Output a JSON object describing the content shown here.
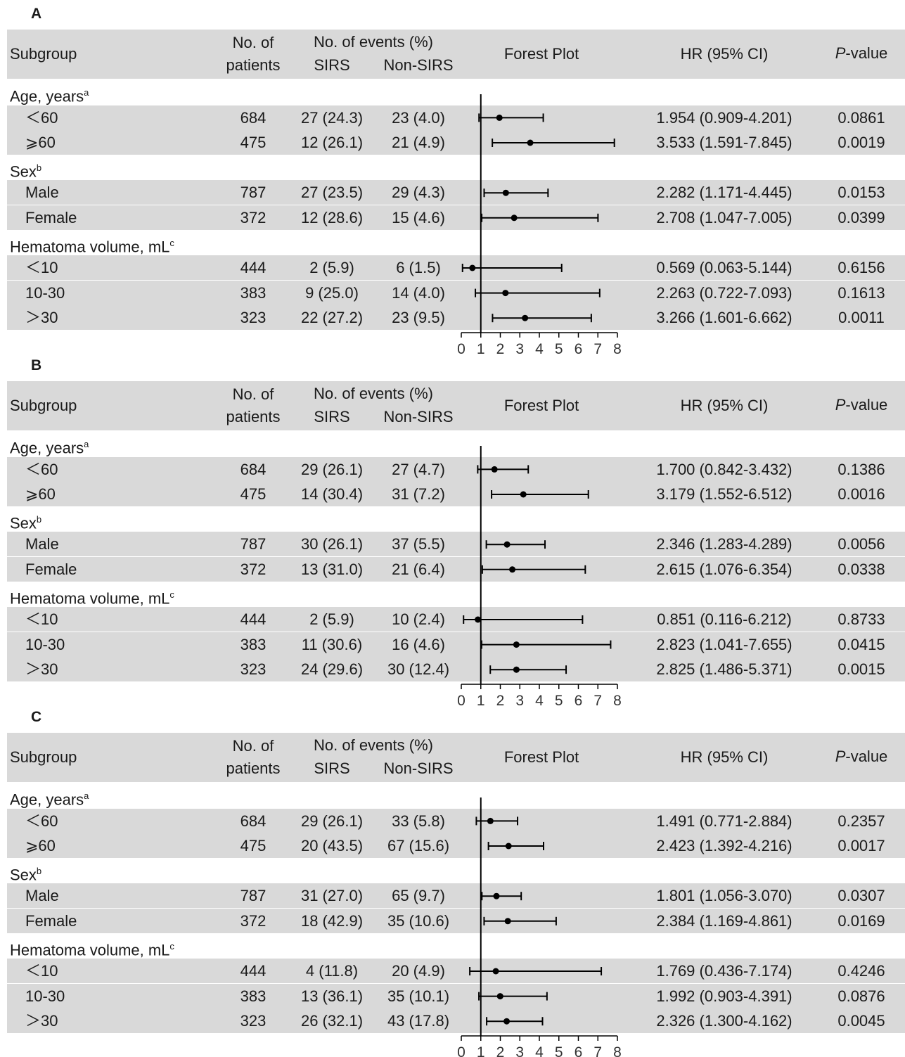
{
  "columns": {
    "subgroup": "Subgroup",
    "patients_line1": "No. of",
    "patients_line2": "patients",
    "events": "No. of events (%)",
    "sirs": "SIRS",
    "non_sirs": "Non-SIRS",
    "forest": "Forest Plot",
    "hr": "HR (95% CI)",
    "p_italic": "P",
    "p_rest": "-value"
  },
  "chart_data": [
    {
      "type": "forest",
      "panel": "A",
      "x_ticks": [
        0,
        1,
        2,
        3,
        4,
        5,
        6,
        7,
        8
      ],
      "xlim": [
        0,
        8
      ],
      "reference_line": 1,
      "rows": [
        {
          "kind": "group",
          "label": "Age, years",
          "sup": "a"
        },
        {
          "kind": "item",
          "label": "<60",
          "glyph": "＜60",
          "patients": "684",
          "sirs": "27 (24.3)",
          "non_sirs": "23 (4.0)",
          "hr_text": "1.954 (0.909-4.201)",
          "p": "0.0861",
          "hr": 1.954,
          "lo": 0.909,
          "hi": 4.201
        },
        {
          "kind": "item",
          "label": ">=60",
          "glyph": "⩾60",
          "patients": "475",
          "sirs": "12 (26.1)",
          "non_sirs": "21 (4.9)",
          "hr_text": "3.533 (1.591-7.845)",
          "p": "0.0019",
          "hr": 3.533,
          "lo": 1.591,
          "hi": 7.845
        },
        {
          "kind": "group",
          "label": "Sex",
          "sup": "b"
        },
        {
          "kind": "item",
          "label": "Male",
          "glyph": "Male",
          "patients": "787",
          "sirs": "27 (23.5)",
          "non_sirs": "29 (4.3)",
          "hr_text": "2.282 (1.171-4.445)",
          "p": "0.0153",
          "hr": 2.282,
          "lo": 1.171,
          "hi": 4.445
        },
        {
          "kind": "item",
          "label": "Female",
          "glyph": "Female",
          "patients": "372",
          "sirs": "12 (28.6)",
          "non_sirs": "15 (4.6)",
          "hr_text": "2.708 (1.047-7.005)",
          "p": "0.0399",
          "hr": 2.708,
          "lo": 1.047,
          "hi": 7.005
        },
        {
          "kind": "group",
          "label": "Hematoma volume, mL",
          "sup": "c"
        },
        {
          "kind": "item",
          "label": "<10",
          "glyph": "＜10",
          "patients": "444",
          "sirs": "2 (5.9)",
          "non_sirs": "6 (1.5)",
          "hr_text": "0.569 (0.063-5.144)",
          "p": "0.6156",
          "hr": 0.569,
          "lo": 0.063,
          "hi": 5.144
        },
        {
          "kind": "item",
          "label": "10-30",
          "glyph": "10-30",
          "patients": "383",
          "sirs": "9 (25.0)",
          "non_sirs": "14 (4.0)",
          "hr_text": "2.263 (0.722-7.093)",
          "p": "0.1613",
          "hr": 2.263,
          "lo": 0.722,
          "hi": 7.093
        },
        {
          "kind": "item",
          "label": ">30",
          "glyph": "＞30",
          "patients": "323",
          "sirs": "22 (27.2)",
          "non_sirs": "23 (9.5)",
          "hr_text": "3.266 (1.601-6.662)",
          "p": "0.0011",
          "hr": 3.266,
          "lo": 1.601,
          "hi": 6.662
        }
      ]
    },
    {
      "type": "forest",
      "panel": "B",
      "x_ticks": [
        0,
        1,
        2,
        3,
        4,
        5,
        6,
        7,
        8
      ],
      "xlim": [
        0,
        8
      ],
      "reference_line": 1,
      "rows": [
        {
          "kind": "group",
          "label": "Age, years",
          "sup": "a"
        },
        {
          "kind": "item",
          "label": "<60",
          "glyph": "＜60",
          "patients": "684",
          "sirs": "29 (26.1)",
          "non_sirs": "27 (4.7)",
          "hr_text": "1.700 (0.842-3.432)",
          "p": "0.1386",
          "hr": 1.7,
          "lo": 0.842,
          "hi": 3.432
        },
        {
          "kind": "item",
          "label": ">=60",
          "glyph": "⩾60",
          "patients": "475",
          "sirs": "14 (30.4)",
          "non_sirs": "31 (7.2)",
          "hr_text": "3.179 (1.552-6.512)",
          "p": "0.0016",
          "hr": 3.179,
          "lo": 1.552,
          "hi": 6.512
        },
        {
          "kind": "group",
          "label": "Sex",
          "sup": "b"
        },
        {
          "kind": "item",
          "label": "Male",
          "glyph": "Male",
          "patients": "787",
          "sirs": "30 (26.1)",
          "non_sirs": "37 (5.5)",
          "hr_text": "2.346 (1.283-4.289)",
          "p": "0.0056",
          "hr": 2.346,
          "lo": 1.283,
          "hi": 4.289
        },
        {
          "kind": "item",
          "label": "Female",
          "glyph": "Female",
          "patients": "372",
          "sirs": "13 (31.0)",
          "non_sirs": "21 (6.4)",
          "hr_text": "2.615 (1.076-6.354)",
          "p": "0.0338",
          "hr": 2.615,
          "lo": 1.076,
          "hi": 6.354
        },
        {
          "kind": "group",
          "label": "Hematoma volume, mL",
          "sup": "c"
        },
        {
          "kind": "item",
          "label": "<10",
          "glyph": "＜10",
          "patients": "444",
          "sirs": "2 (5.9)",
          "non_sirs": "10 (2.4)",
          "hr_text": "0.851 (0.116-6.212)",
          "p": "0.8733",
          "hr": 0.851,
          "lo": 0.116,
          "hi": 6.212
        },
        {
          "kind": "item",
          "label": "10-30",
          "glyph": "10-30",
          "patients": "383",
          "sirs": "11 (30.6)",
          "non_sirs": "16 (4.6)",
          "hr_text": "2.823 (1.041-7.655)",
          "p": "0.0415",
          "hr": 2.823,
          "lo": 1.041,
          "hi": 7.655
        },
        {
          "kind": "item",
          "label": ">30",
          "glyph": "＞30",
          "patients": "323",
          "sirs": "24 (29.6)",
          "non_sirs": "30 (12.4)",
          "hr_text": "2.825 (1.486-5.371)",
          "p": "0.0015",
          "hr": 2.825,
          "lo": 1.486,
          "hi": 5.371
        }
      ]
    },
    {
      "type": "forest",
      "panel": "C",
      "x_ticks": [
        0,
        1,
        2,
        3,
        4,
        5,
        6,
        7,
        8
      ],
      "xlim": [
        0,
        8
      ],
      "reference_line": 1,
      "rows": [
        {
          "kind": "group",
          "label": "Age, years",
          "sup": "a"
        },
        {
          "kind": "item",
          "label": "<60",
          "glyph": "＜60",
          "patients": "684",
          "sirs": "29 (26.1)",
          "non_sirs": "33 (5.8)",
          "hr_text": "1.491 (0.771-2.884)",
          "p": "0.2357",
          "hr": 1.491,
          "lo": 0.771,
          "hi": 2.884
        },
        {
          "kind": "item",
          "label": ">=60",
          "glyph": "⩾60",
          "patients": "475",
          "sirs": "20 (43.5)",
          "non_sirs": "67 (15.6)",
          "hr_text": "2.423 (1.392-4.216)",
          "p": "0.0017",
          "hr": 2.423,
          "lo": 1.392,
          "hi": 4.216
        },
        {
          "kind": "group",
          "label": "Sex",
          "sup": "b"
        },
        {
          "kind": "item",
          "label": "Male",
          "glyph": "Male",
          "patients": "787",
          "sirs": "31 (27.0)",
          "non_sirs": "65 (9.7)",
          "hr_text": "1.801 (1.056-3.070)",
          "p": "0.0307",
          "hr": 1.801,
          "lo": 1.056,
          "hi": 3.07
        },
        {
          "kind": "item",
          "label": "Female",
          "glyph": "Female",
          "patients": "372",
          "sirs": "18 (42.9)",
          "non_sirs": "35 (10.6)",
          "hr_text": "2.384 (1.169-4.861)",
          "p": "0.0169",
          "hr": 2.384,
          "lo": 1.169,
          "hi": 4.861
        },
        {
          "kind": "group",
          "label": "Hematoma volume, mL",
          "sup": "c"
        },
        {
          "kind": "item",
          "label": "<10",
          "glyph": "＜10",
          "patients": "444",
          "sirs": "4 (11.8)",
          "non_sirs": "20 (4.9)",
          "hr_text": "1.769 (0.436-7.174)",
          "p": "0.4246",
          "hr": 1.769,
          "lo": 0.436,
          "hi": 7.174
        },
        {
          "kind": "item",
          "label": "10-30",
          "glyph": "10-30",
          "patients": "383",
          "sirs": "13 (36.1)",
          "non_sirs": "35 (10.1)",
          "hr_text": "1.992 (0.903-4.391)",
          "p": "0.0876",
          "hr": 1.992,
          "lo": 0.903,
          "hi": 4.391
        },
        {
          "kind": "item",
          "label": ">30",
          "glyph": "＞30",
          "patients": "323",
          "sirs": "26 (32.1)",
          "non_sirs": "43 (17.8)",
          "hr_text": "2.326 (1.300-4.162)",
          "p": "0.0045",
          "hr": 2.326,
          "lo": 1.3,
          "hi": 4.162
        }
      ]
    }
  ]
}
